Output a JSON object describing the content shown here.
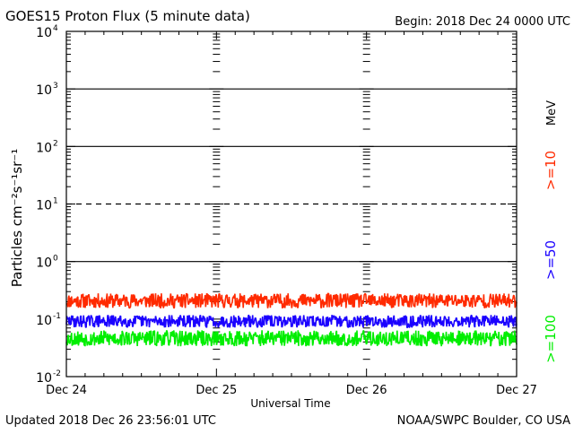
{
  "chart_data": {
    "type": "line",
    "title": "GOES15 Proton Flux (5 minute data)",
    "begin_label": "Begin: 2018 Dec 24 0000 UTC",
    "ylabel": "Particles cm⁻²s⁻¹sr⁻¹",
    "xlabel": "Universal Time",
    "y_scale": "log",
    "ylim": [
      0.01,
      10000
    ],
    "y_ticks": [
      {
        "value": 0.01,
        "base": "10",
        "exp": "-2"
      },
      {
        "value": 0.1,
        "base": "10",
        "exp": "-1"
      },
      {
        "value": 1,
        "base": "10",
        "exp": "0"
      },
      {
        "value": 10,
        "base": "10",
        "exp": "1"
      },
      {
        "value": 100,
        "base": "10",
        "exp": "2"
      },
      {
        "value": 1000,
        "base": "10",
        "exp": "3"
      },
      {
        "value": 10000,
        "base": "10",
        "exp": "4"
      }
    ],
    "reference_lines": [
      {
        "value": 1,
        "style": "solid"
      },
      {
        "value": 10,
        "style": "dashed"
      },
      {
        "value": 100,
        "style": "solid"
      },
      {
        "value": 1000,
        "style": "solid"
      }
    ],
    "x_range_days": [
      "2018-12-24",
      "2018-12-27"
    ],
    "x_tick_labels": [
      "Dec 24",
      "Dec 25",
      "Dec 26",
      "Dec 27"
    ],
    "unit_label": "MeV",
    "series": [
      {
        "name": ">=10",
        "color": "#ff2a00",
        "base": 0.19,
        "spread": 0.26,
        "seed": 11
      },
      {
        "name": ">=50",
        "color": "#1a00ff",
        "base": 0.085,
        "spread": 0.22,
        "seed": 29
      },
      {
        "name": ">=100",
        "color": "#00ee00",
        "base": 0.042,
        "spread": 0.28,
        "seed": 53
      }
    ],
    "grid": false
  },
  "footer": {
    "updated": "Updated 2018 Dec 26 23:56:01 UTC",
    "credit": "NOAA/SWPC Boulder, CO USA"
  }
}
